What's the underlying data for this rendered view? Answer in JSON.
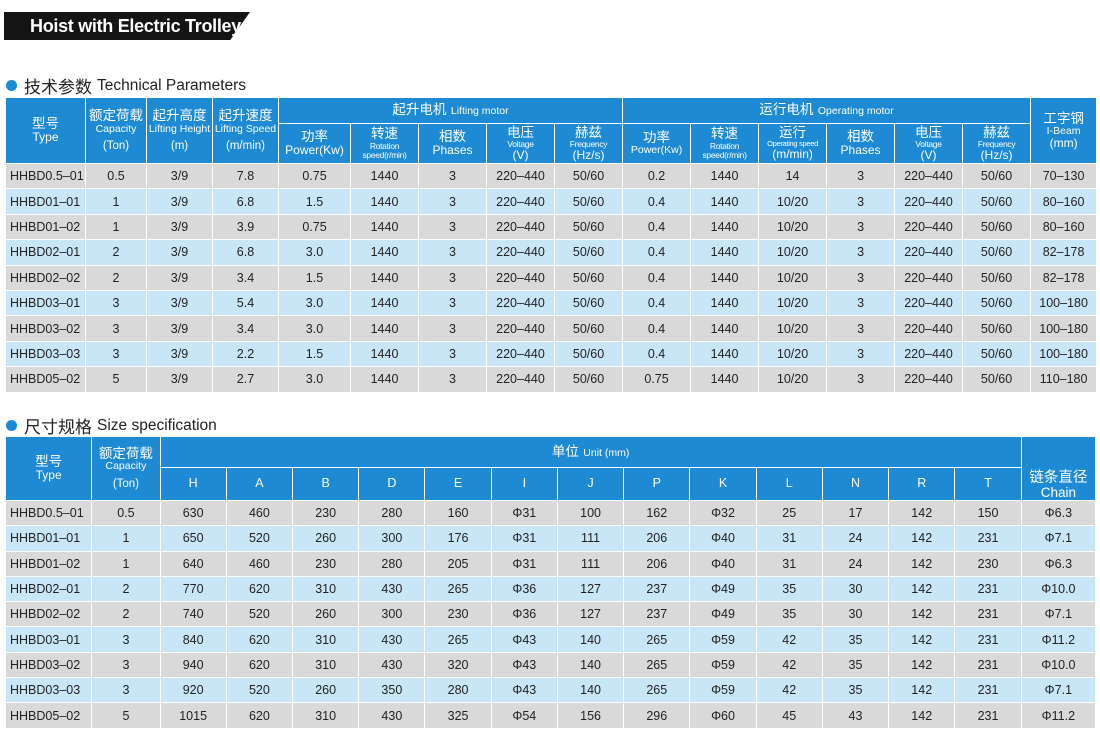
{
  "banner": "Hoist with Electric Trolley",
  "tech": {
    "title_cn": "技术参数",
    "title_en": "Technical Parameters",
    "h_type_cn": "型号",
    "h_type_en": "Type",
    "h_cap_cn": "额定荷载",
    "h_cap_en": "Capacity",
    "h_cap_unit": "(Ton)",
    "h_lh_cn": "起升高度",
    "h_lh_en": "Lifting Height",
    "h_lh_unit": "(m)",
    "h_ls_cn": "起升速度",
    "h_ls_en": "Lifting Speed",
    "h_ls_unit": "(m/min)",
    "h_lm_cn": "起升电机",
    "h_lm_en": "Lifting motor",
    "h_om_cn": "运行电机",
    "h_om_en": "Operating motor",
    "h_ib_cn": "工字钢",
    "h_ib_en": "I-Beam",
    "h_ib_unit": "(mm)",
    "h_pow_cn": "功率",
    "h_pow_en": "Power(Kw)",
    "h_rot_cn": "转速",
    "h_rot_en1": "Rotation",
    "h_rot_en2": "speed(r/min)",
    "h_ph_cn": "相数",
    "h_ph_en": "Phases",
    "h_vol_cn": "电压",
    "h_vol_en": "Voltage",
    "h_vol_unit": "(V)",
    "h_fr_cn": "赫兹",
    "h_fr_en": "Frequency",
    "h_fr_unit": "(Hz/s)",
    "h_run_cn": "运行",
    "h_run_en": "Operating speed",
    "h_run_unit": "(m/min)",
    "rows": [
      [
        "HHBD0.5–01",
        "0.5",
        "3/9",
        "7.8",
        "0.75",
        "1440",
        "3",
        "220–440",
        "50/60",
        "0.2",
        "1440",
        "14",
        "3",
        "220–440",
        "50/60",
        "70–130"
      ],
      [
        "HHBD01–01",
        "1",
        "3/9",
        "6.8",
        "1.5",
        "1440",
        "3",
        "220–440",
        "50/60",
        "0.4",
        "1440",
        "10/20",
        "3",
        "220–440",
        "50/60",
        "80–160"
      ],
      [
        "HHBD01–02",
        "1",
        "3/9",
        "3.9",
        "0.75",
        "1440",
        "3",
        "220–440",
        "50/60",
        "0.4",
        "1440",
        "10/20",
        "3",
        "220–440",
        "50/60",
        "80–160"
      ],
      [
        "HHBD02–01",
        "2",
        "3/9",
        "6.8",
        "3.0",
        "1440",
        "3",
        "220–440",
        "50/60",
        "0.4",
        "1440",
        "10/20",
        "3",
        "220–440",
        "50/60",
        "82–178"
      ],
      [
        "HHBD02–02",
        "2",
        "3/9",
        "3.4",
        "1.5",
        "1440",
        "3",
        "220–440",
        "50/60",
        "0.4",
        "1440",
        "10/20",
        "3",
        "220–440",
        "50/60",
        "82–178"
      ],
      [
        "HHBD03–01",
        "3",
        "3/9",
        "5.4",
        "3.0",
        "1440",
        "3",
        "220–440",
        "50/60",
        "0.4",
        "1440",
        "10/20",
        "3",
        "220–440",
        "50/60",
        "100–180"
      ],
      [
        "HHBD03–02",
        "3",
        "3/9",
        "3.4",
        "3.0",
        "1440",
        "3",
        "220–440",
        "50/60",
        "0.4",
        "1440",
        "10/20",
        "3",
        "220–440",
        "50/60",
        "100–180"
      ],
      [
        "HHBD03–03",
        "3",
        "3/9",
        "2.2",
        "1.5",
        "1440",
        "3",
        "220–440",
        "50/60",
        "0.4",
        "1440",
        "10/20",
        "3",
        "220–440",
        "50/60",
        "100–180"
      ],
      [
        "HHBD05–02",
        "5",
        "3/9",
        "2.7",
        "3.0",
        "1440",
        "3",
        "220–440",
        "50/60",
        "0.75",
        "1440",
        "10/20",
        "3",
        "220–440",
        "50/60",
        "110–180"
      ]
    ]
  },
  "size": {
    "title_cn": "尺寸规格",
    "title_en": "Size specification",
    "h_type_cn": "型号",
    "h_type_en": "Type",
    "h_cap_cn": "额定荷载",
    "h_cap_en": "Capacity",
    "h_cap_unit": "(Ton)",
    "h_unit_cn": "单位",
    "h_unit_en": "Unit (mm)",
    "h_chain_cn": "链条直径",
    "h_chain_en": "Chain",
    "cols": [
      "H",
      "A",
      "B",
      "D",
      "E",
      "I",
      "J",
      "P",
      "K",
      "L",
      "N",
      "R",
      "T"
    ],
    "rows": [
      [
        "HHBD0.5–01",
        "0.5",
        "630",
        "460",
        "230",
        "280",
        "160",
        "Φ31",
        "100",
        "162",
        "Φ32",
        "25",
        "17",
        "142",
        "150",
        "Φ6.3"
      ],
      [
        "HHBD01–01",
        "1",
        "650",
        "520",
        "260",
        "300",
        "176",
        "Φ31",
        "111",
        "206",
        "Φ40",
        "31",
        "24",
        "142",
        "231",
        "Φ7.1"
      ],
      [
        "HHBD01–02",
        "1",
        "640",
        "460",
        "230",
        "280",
        "205",
        "Φ31",
        "111",
        "206",
        "Φ40",
        "31",
        "24",
        "142",
        "230",
        "Φ6.3"
      ],
      [
        "HHBD02–01",
        "2",
        "770",
        "620",
        "310",
        "430",
        "265",
        "Φ36",
        "127",
        "237",
        "Φ49",
        "35",
        "30",
        "142",
        "231",
        "Φ10.0"
      ],
      [
        "HHBD02–02",
        "2",
        "740",
        "520",
        "260",
        "300",
        "230",
        "Φ36",
        "127",
        "237",
        "Φ49",
        "35",
        "30",
        "142",
        "231",
        "Φ7.1"
      ],
      [
        "HHBD03–01",
        "3",
        "840",
        "620",
        "310",
        "430",
        "265",
        "Φ43",
        "140",
        "265",
        "Φ59",
        "42",
        "35",
        "142",
        "231",
        "Φ11.2"
      ],
      [
        "HHBD03–02",
        "3",
        "940",
        "620",
        "310",
        "430",
        "320",
        "Φ43",
        "140",
        "265",
        "Φ59",
        "42",
        "35",
        "142",
        "231",
        "Φ10.0"
      ],
      [
        "HHBD03–03",
        "3",
        "920",
        "520",
        "260",
        "350",
        "280",
        "Φ43",
        "140",
        "265",
        "Φ59",
        "42",
        "35",
        "142",
        "231",
        "Φ7.1"
      ],
      [
        "HHBD05–02",
        "5",
        "1015",
        "620",
        "310",
        "430",
        "325",
        "Φ54",
        "156",
        "296",
        "Φ60",
        "45",
        "43",
        "142",
        "231",
        "Φ11.2"
      ]
    ]
  }
}
